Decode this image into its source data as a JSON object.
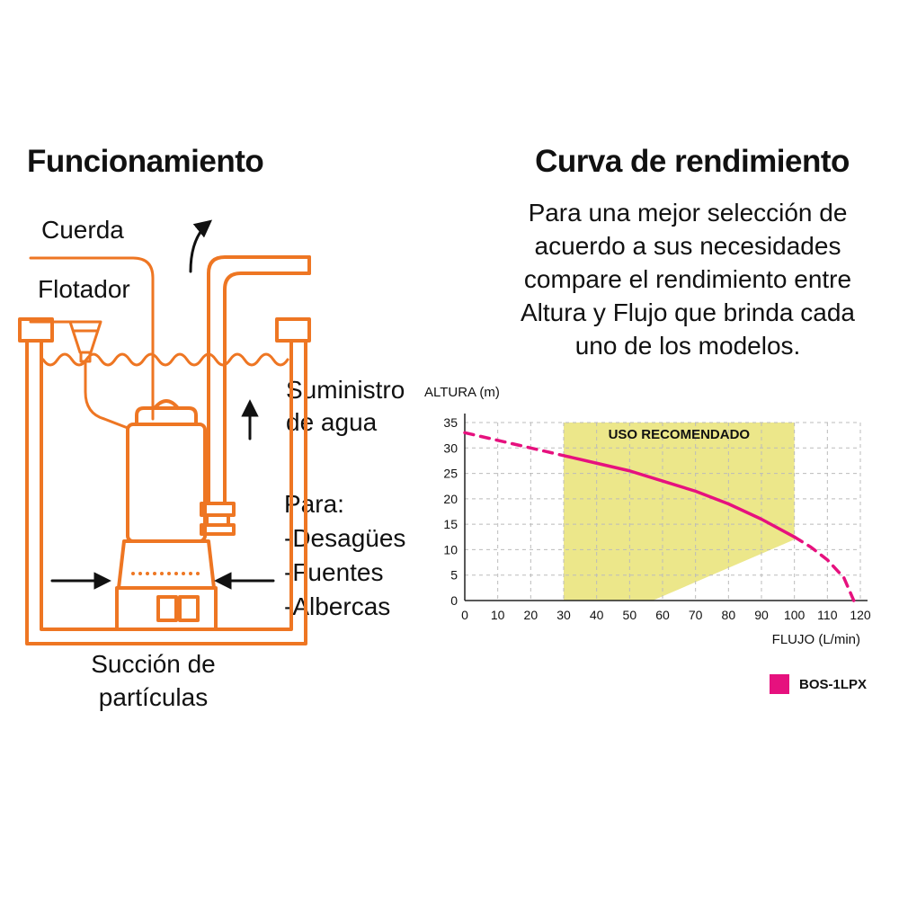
{
  "left": {
    "title": "Funcionamiento",
    "diagram_color": "#ee7623",
    "labels": {
      "cuerda": "Cuerda",
      "flotador": "Flotador",
      "suministro": "Suministro de agua",
      "para_title": "Para:",
      "para_items": [
        "-Desagües",
        "-Fuentes",
        "-Albercas"
      ],
      "succion": "Succión de partículas"
    }
  },
  "right": {
    "title": "Curva de rendimiento",
    "description_lines": [
      "Para una mejor selección de",
      "acuerdo a sus necesidades",
      "compare el rendimiento entre",
      "Altura y Flujo que brinda cada",
      "uno de los modelos."
    ]
  },
  "chart_data": {
    "type": "line",
    "title": "",
    "ylabel": "ALTURA (m)",
    "xlabel": "FLUJO (L/min)",
    "xlim": [
      0,
      120
    ],
    "ylim": [
      0,
      35
    ],
    "xticks": [
      0,
      10,
      20,
      30,
      40,
      50,
      60,
      70,
      80,
      90,
      100,
      110,
      120
    ],
    "yticks": [
      0,
      5,
      10,
      15,
      20,
      25,
      30,
      35
    ],
    "grid": true,
    "grid_color": "#bbbbbb",
    "recommended_zone": {
      "label": "USO RECOMENDADO",
      "color": "#ece78a",
      "polygon": [
        [
          30,
          35
        ],
        [
          100,
          35
        ],
        [
          100,
          12
        ],
        [
          57,
          0
        ],
        [
          30,
          0
        ]
      ]
    },
    "series": [
      {
        "name": "BOS-1LPX",
        "color": "#e6117e",
        "solid_range": [
          30,
          100
        ],
        "points": [
          [
            0,
            33
          ],
          [
            10,
            31.5
          ],
          [
            20,
            30
          ],
          [
            30,
            28.5
          ],
          [
            40,
            27
          ],
          [
            50,
            25.5
          ],
          [
            60,
            23.5
          ],
          [
            70,
            21.5
          ],
          [
            80,
            19
          ],
          [
            90,
            16
          ],
          [
            100,
            12.5
          ],
          [
            105,
            10.5
          ],
          [
            110,
            8
          ],
          [
            115,
            4.5
          ],
          [
            118,
            0
          ]
        ]
      }
    ],
    "legend": [
      {
        "label": "BOS-1LPX",
        "color": "#e6117e"
      }
    ]
  }
}
